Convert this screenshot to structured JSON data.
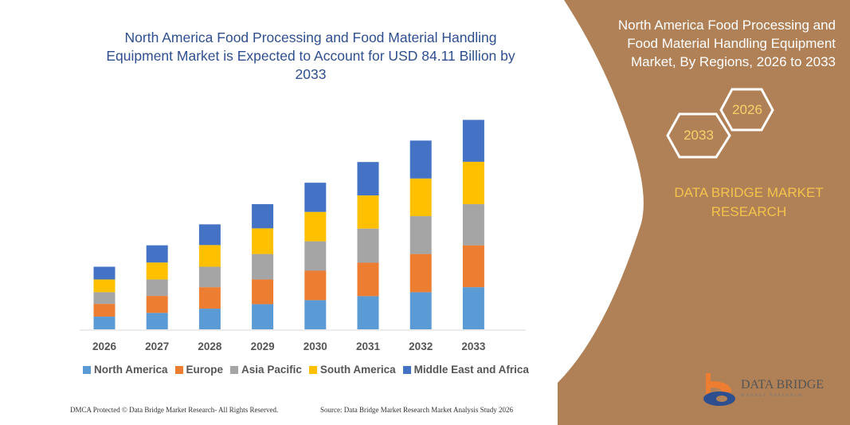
{
  "chart_data": {
    "type": "bar",
    "stacked": true,
    "title": "North America Food Processing and Food Material Handling Equipment Market is Expected to Account for USD 84.11 Billion by 2033",
    "categories": [
      "2026",
      "2027",
      "2028",
      "2029",
      "2030",
      "2031",
      "2032",
      "2033"
    ],
    "series": [
      {
        "name": "North America",
        "color": "#5b9bd5",
        "values": [
          5.1,
          6.6,
          8.3,
          10.1,
          11.7,
          13.3,
          14.9,
          16.9
        ]
      },
      {
        "name": "Europe",
        "color": "#ed7d31",
        "values": [
          5.1,
          6.8,
          8.6,
          9.9,
          11.8,
          13.4,
          15.3,
          16.8
        ]
      },
      {
        "name": "Asia Pacific",
        "color": "#a5a5a5",
        "values": [
          4.7,
          6.6,
          8.2,
          10.2,
          11.8,
          13.7,
          15.2,
          16.5
        ]
      },
      {
        "name": "South America",
        "color": "#ffc000",
        "values": [
          5.1,
          6.8,
          8.7,
          10.3,
          11.8,
          13.3,
          15.1,
          17.0
        ]
      },
      {
        "name": "Middle East and Africa",
        "color": "#4472c4",
        "values": [
          5.1,
          6.9,
          8.3,
          9.7,
          11.7,
          13.4,
          15.2,
          16.8
        ]
      }
    ],
    "xlabel": "",
    "ylabel": "",
    "grid": false,
    "legend": "bottom",
    "ylim": [
      0,
      84.11
    ]
  },
  "side": {
    "title": "North America Food Processing and Food Material Handling Equipment Market, By Regions, 2026 to 2033",
    "hex_start": "2026",
    "hex_end": "2033",
    "brand": "DATA BRIDGE MARKET RESEARCH",
    "panel_color": "#b08157"
  },
  "logo": {
    "name": "DATA BRIDGE",
    "sub": "MARKET RESEARCH"
  },
  "footer": {
    "left": "DMCA Protected © Data Bridge Market Research-  All Rights Reserved.",
    "right": "Source: Data Bridge Market Research  Market Analysis Study 2026"
  }
}
